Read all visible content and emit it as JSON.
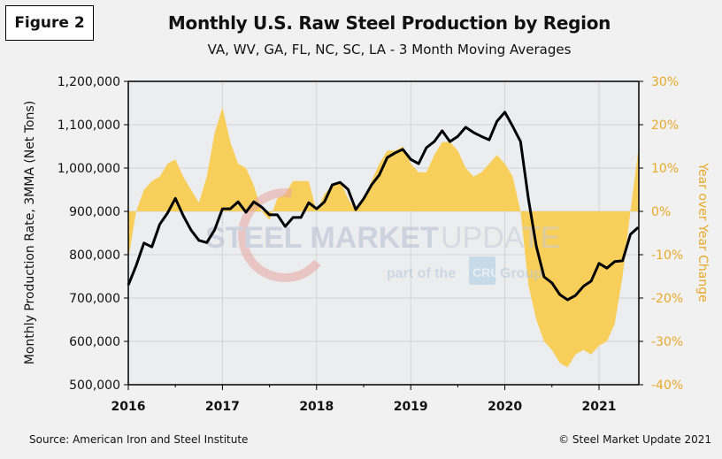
{
  "figure_label": "Figure 2",
  "footer": {
    "source": "Source: American Iron and Steel Institute",
    "copyright": "© Steel Market Update 2021"
  },
  "watermark": {
    "brand_bold": "STEEL MARKET",
    "brand_light": "UPDATE",
    "tag_prefix": "part of the",
    "tag_badge": "CRU",
    "tag_suffix": "Group"
  },
  "colors": {
    "production_line": "#000000",
    "yoy_area": "#f8cf5a",
    "right_axis": "#e8a82a",
    "plot_bg": "#ecedef",
    "grid": "#d4d4d4"
  },
  "chart_data": {
    "type": "line+area",
    "title": "Monthly U.S. Raw Steel Production by Region",
    "subtitle": "VA, WV, GA, FL, NC, SC, LA - 3 Month Moving Averages",
    "xlabel": "",
    "ylabel": "Monthly Production Rate, 3MMA (Net Tons)",
    "y2label": "Year over Year Change",
    "ylim": [
      500000,
      1200000
    ],
    "y2lim": [
      -40,
      30
    ],
    "xlim": [
      "2016-01",
      "2021-06"
    ],
    "grid": true,
    "x_ticks": [
      "2016",
      "2017",
      "2018",
      "2019",
      "2020",
      "2021"
    ],
    "y_ticks": [
      "500,000",
      "600,000",
      "700,000",
      "800,000",
      "900,000",
      "1,000,000",
      "1,100,000",
      "1,200,000"
    ],
    "y2_ticks": [
      "-40%",
      "-30%",
      "-20%",
      "-10%",
      "0%",
      "10%",
      "20%",
      "30%"
    ],
    "x": [
      "2016-01",
      "2016-02",
      "2016-03",
      "2016-04",
      "2016-05",
      "2016-06",
      "2016-07",
      "2016-08",
      "2016-09",
      "2016-10",
      "2016-11",
      "2016-12",
      "2017-01",
      "2017-02",
      "2017-03",
      "2017-04",
      "2017-05",
      "2017-06",
      "2017-07",
      "2017-08",
      "2017-09",
      "2017-10",
      "2017-11",
      "2017-12",
      "2018-01",
      "2018-02",
      "2018-03",
      "2018-04",
      "2018-05",
      "2018-06",
      "2018-07",
      "2018-08",
      "2018-09",
      "2018-10",
      "2018-11",
      "2018-12",
      "2019-01",
      "2019-02",
      "2019-03",
      "2019-04",
      "2019-05",
      "2019-06",
      "2019-07",
      "2019-08",
      "2019-09",
      "2019-10",
      "2019-11",
      "2019-12",
      "2020-01",
      "2020-02",
      "2020-03",
      "2020-04",
      "2020-05",
      "2020-06",
      "2020-07",
      "2020-08",
      "2020-09",
      "2020-10",
      "2020-11",
      "2020-12",
      "2021-01",
      "2021-02",
      "2021-03",
      "2021-04",
      "2021-05",
      "2021-06"
    ],
    "series": [
      {
        "name": "Monthly Production Rate (3MMA, Net Tons)",
        "axis": "left",
        "kind": "line",
        "values": [
          730000,
          775000,
          827000,
          818000,
          870000,
          896000,
          930000,
          890000,
          857000,
          833000,
          828000,
          857000,
          906000,
          906000,
          922000,
          898000,
          922000,
          910000,
          892000,
          892000,
          865000,
          886000,
          886000,
          920000,
          906000,
          922000,
          961000,
          967000,
          951000,
          904000,
          929000,
          961000,
          984000,
          1024000,
          1035000,
          1043000,
          1020000,
          1010000,
          1047000,
          1061000,
          1086000,
          1061000,
          1073000,
          1094000,
          1082000,
          1073000,
          1065000,
          1108000,
          1129000,
          1096000,
          1061000,
          929000,
          820000,
          749000,
          735000,
          708000,
          696000,
          706000,
          727000,
          739000,
          780000,
          769000,
          784000,
          786000,
          847000,
          863000
        ]
      },
      {
        "name": "Year over Year Change (%)",
        "axis": "right",
        "kind": "area",
        "values": [
          -11,
          0,
          5,
          7,
          8,
          11,
          12,
          8,
          5,
          2,
          8,
          18,
          24,
          16,
          11,
          10,
          6,
          0,
          -2,
          3,
          4,
          7,
          7,
          7,
          0,
          4,
          6,
          7,
          3,
          0,
          3,
          7,
          11,
          14,
          14,
          15,
          11,
          9,
          9,
          13,
          16,
          16,
          14,
          10,
          8,
          9,
          11,
          13,
          11,
          8,
          0,
          -17,
          -25,
          -30,
          -32,
          -35,
          -36,
          -33,
          -32,
          -33,
          -31,
          -30,
          -26,
          -15,
          0,
          14
        ]
      }
    ]
  }
}
